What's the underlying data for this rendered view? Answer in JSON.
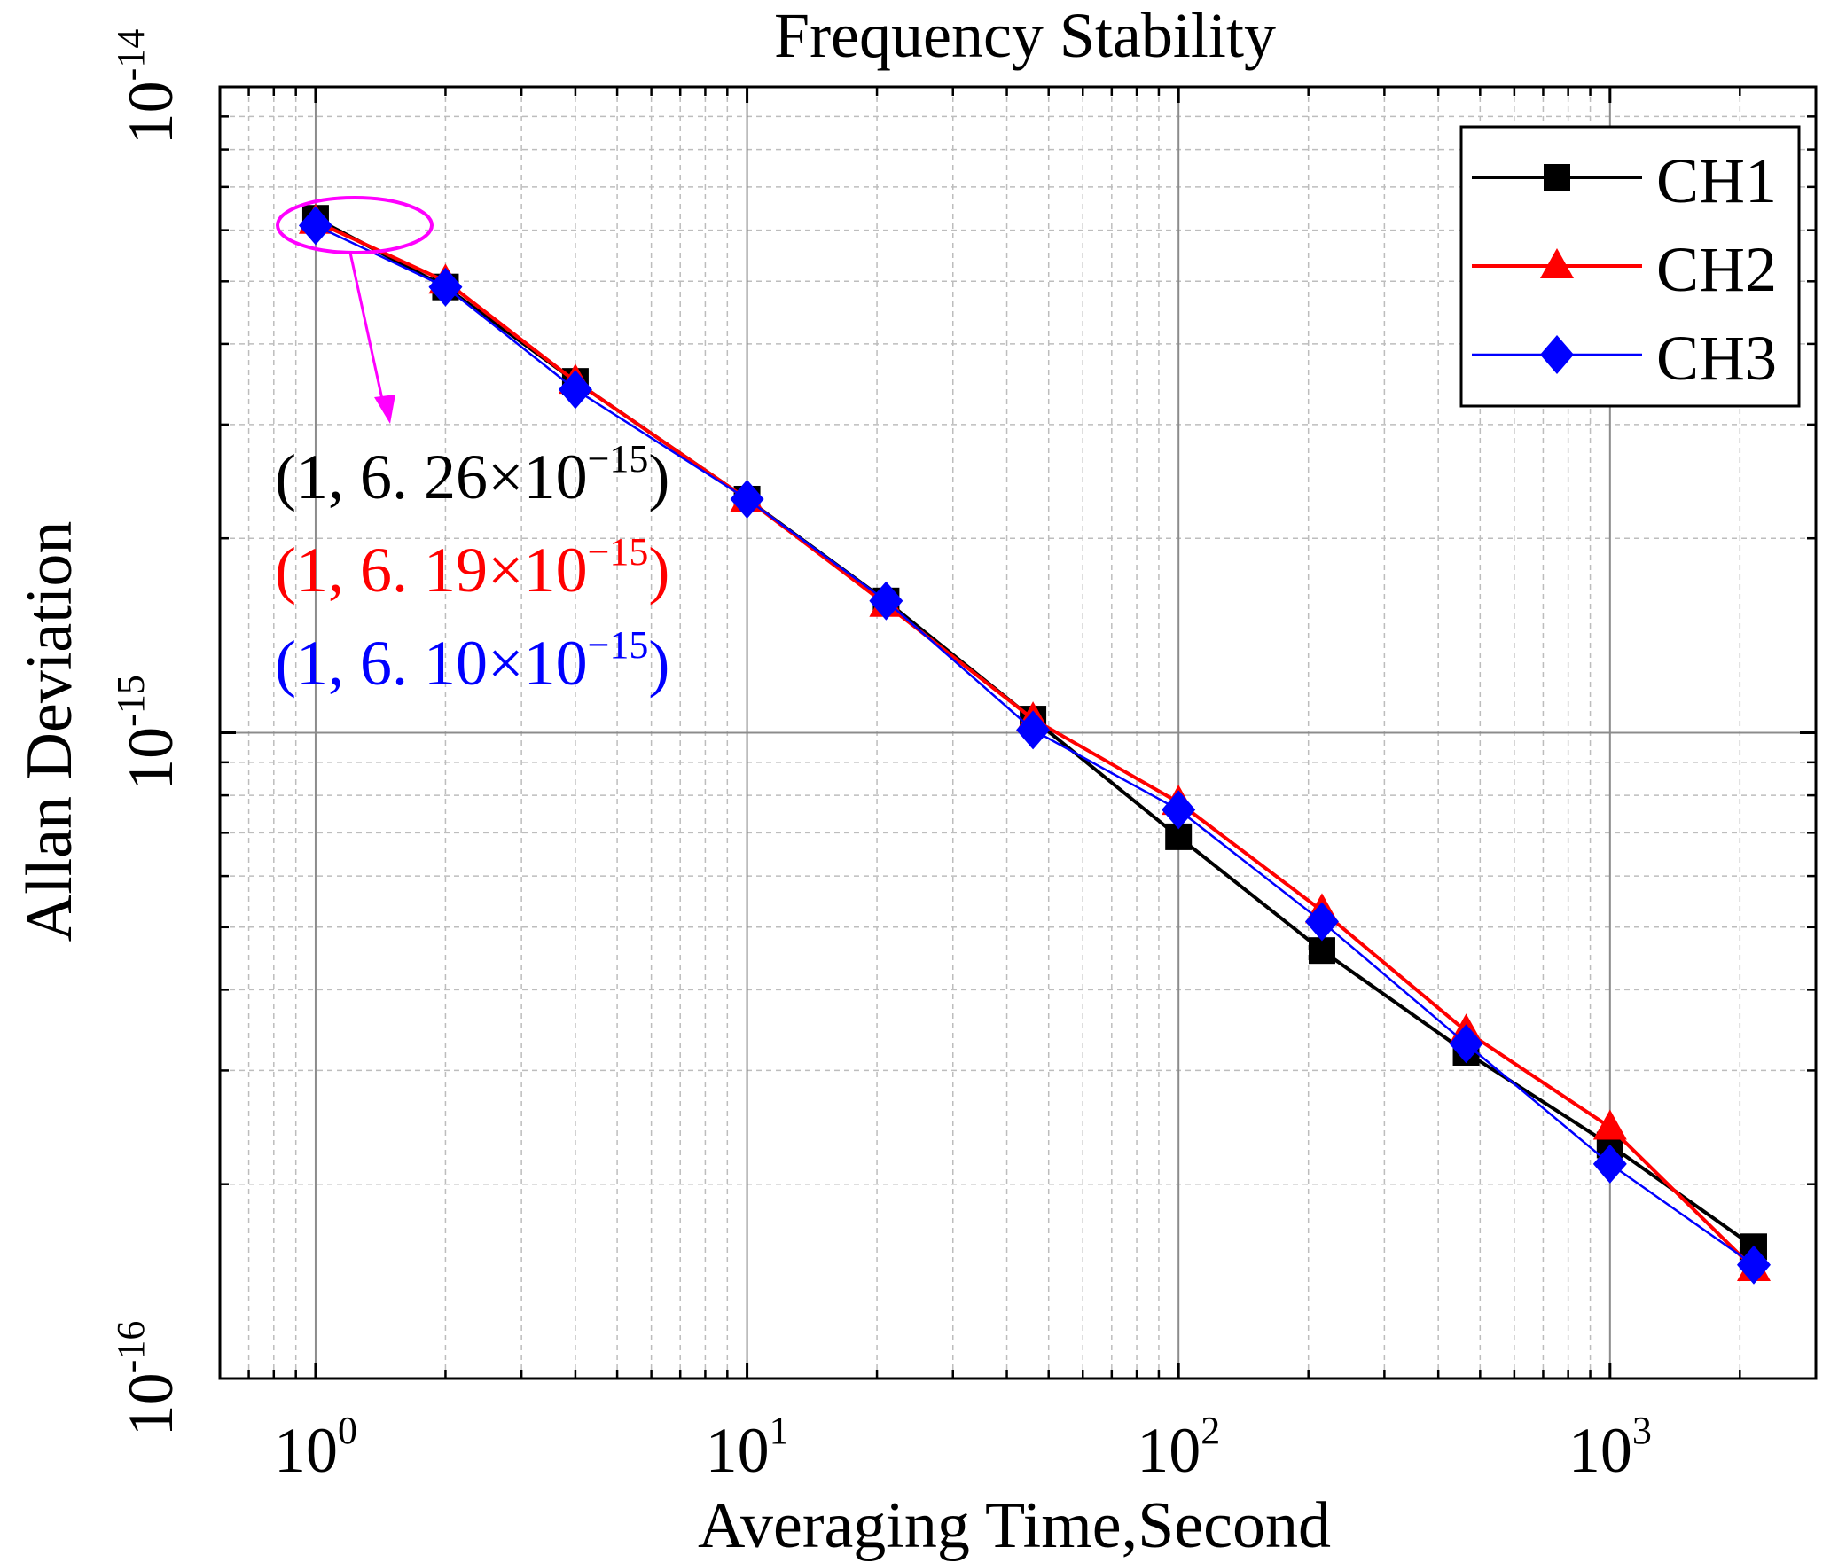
{
  "chart_data": {
    "type": "line",
    "title": "Frequency Stability",
    "xlabel": "Averaging Time,Second",
    "ylabel": "Allan Deviation",
    "xscale": "log",
    "yscale": "log",
    "xlim": [
      0.6,
      3000
    ],
    "ylim": [
      1e-16,
      1e-14
    ],
    "grid": true,
    "legend_position": "top-right",
    "x_ticks": [
      {
        "base": "10",
        "exp": "0"
      },
      {
        "base": "10",
        "exp": "1"
      },
      {
        "base": "10",
        "exp": "2"
      },
      {
        "base": "10",
        "exp": "3"
      }
    ],
    "y_ticks": [
      {
        "base": "10",
        "exp": "-16"
      },
      {
        "base": "10",
        "exp": "-15"
      },
      {
        "base": "10",
        "exp": "-14"
      }
    ],
    "x": [
      1,
      2,
      4,
      10,
      21,
      46,
      100,
      215,
      464,
      1000,
      2154
    ],
    "series": [
      {
        "name": "CH1",
        "color": "#000000",
        "marker": "square",
        "values": [
          6.26e-15,
          4.9e-15,
          3.5e-15,
          2.3e-15,
          1.6e-15,
          1.05e-15,
          6.9e-16,
          4.6e-16,
          3.2e-16,
          2.3e-16,
          1.6e-16
        ]
      },
      {
        "name": "CH2",
        "color": "#ff0000",
        "marker": "triangle",
        "values": [
          6.19e-15,
          5e-15,
          3.5e-15,
          2.3e-15,
          1.58e-15,
          1.05e-15,
          7.8e-16,
          5.3e-16,
          3.45e-16,
          2.45e-16,
          1.48e-16
        ]
      },
      {
        "name": "CH3",
        "color": "#0000ff",
        "marker": "diamond",
        "values": [
          6.1e-15,
          4.9e-15,
          3.4e-15,
          2.3e-15,
          1.6e-15,
          1.01e-15,
          7.6e-16,
          5.1e-16,
          3.3e-16,
          2.15e-16,
          1.5e-16
        ]
      }
    ],
    "annotations": [
      {
        "open": "(1, 6. 26×10",
        "exp": "−15",
        "close": ")",
        "color": "#000000"
      },
      {
        "open": "(1, 6. 19×10",
        "exp": "−15",
        "close": ")",
        "color": "#ff0000"
      },
      {
        "open": "(1, 6. 10×10",
        "exp": "−15",
        "close": ")",
        "color": "#0000ff"
      }
    ],
    "highlight_color": "#ff00ff"
  }
}
